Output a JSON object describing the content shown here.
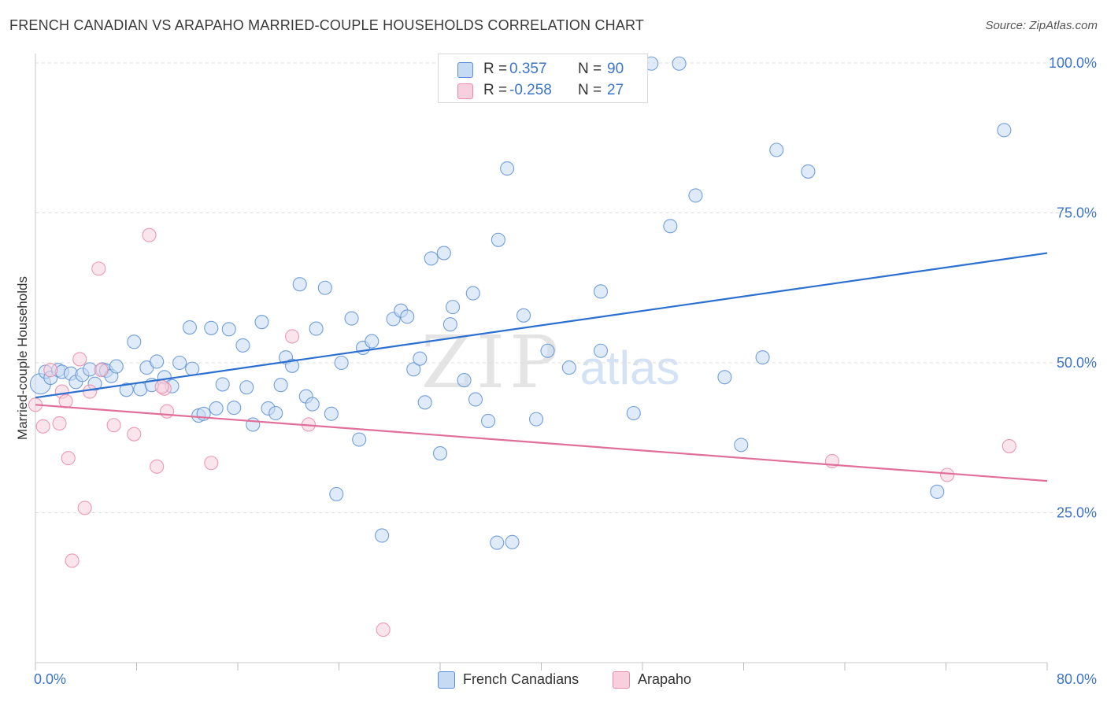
{
  "title": "FRENCH CANADIAN VS ARAPAHO MARRIED-COUPLE HOUSEHOLDS CORRELATION CHART",
  "source": "Source: ZipAtlas.com",
  "watermark": {
    "part1": "ZIP",
    "part2": "atlas"
  },
  "legend": {
    "series1": {
      "r_label": "R =",
      "r_value": "0.357",
      "n_label": "N =",
      "n_value": "90"
    },
    "series2": {
      "r_label": "R =",
      "r_value": "-0.258",
      "n_label": "N =",
      "n_value": "27"
    }
  },
  "colors": {
    "blue": "#5b8fd6",
    "blue_fill": "#c6daf4",
    "blue_line": "#2b6fd0",
    "pink": "#ea8aa8",
    "pink_fill": "#f8cfdc",
    "pink_line": "#e0709a",
    "tick_text": "#3b74c9",
    "grid": "#dddddd"
  },
  "chart_data": {
    "type": "scatter",
    "title": "FRENCH CANADIAN VS ARAPAHO MARRIED-COUPLE HOUSEHOLDS CORRELATION CHART",
    "xlabel": "",
    "ylabel": "Married-couple Households",
    "xlim": [
      0,
      80
    ],
    "ylim": [
      0,
      100
    ],
    "x_tick_labels": [
      "0.0%",
      "80.0%"
    ],
    "y_ticks": [
      25,
      50,
      75,
      100
    ],
    "y_tick_labels": [
      "25.0%",
      "50.0%",
      "75.0%",
      "100.0%"
    ],
    "grid": true,
    "legend_position": "bottom-center",
    "series": [
      {
        "name": "French Canadians",
        "color": "#5b8fd6",
        "r": 0.357,
        "n": 90,
        "trendline": [
          [
            0,
            44.2
          ],
          [
            80,
            68.3
          ]
        ],
        "points": [
          [
            0.4,
            46.5
          ],
          [
            0.8,
            48.5
          ],
          [
            1.2,
            47.5
          ],
          [
            1.8,
            48.8
          ],
          [
            2.1,
            48.5
          ],
          [
            2.8,
            48.2
          ],
          [
            3.2,
            46.8
          ],
          [
            3.7,
            48.0
          ],
          [
            4.3,
            48.9
          ],
          [
            4.7,
            46.5
          ],
          [
            5.3,
            48.9
          ],
          [
            5.6,
            48.7
          ],
          [
            6.0,
            47.8
          ],
          [
            6.4,
            49.4
          ],
          [
            7.2,
            45.5
          ],
          [
            7.8,
            53.5
          ],
          [
            8.3,
            45.6
          ],
          [
            8.8,
            49.2
          ],
          [
            9.6,
            50.2
          ],
          [
            9.2,
            46.3
          ],
          [
            10.2,
            47.6
          ],
          [
            10.8,
            46.1
          ],
          [
            11.4,
            50.0
          ],
          [
            12.2,
            55.9
          ],
          [
            12.4,
            49.0
          ],
          [
            12.9,
            41.2
          ],
          [
            13.3,
            41.5
          ],
          [
            13.9,
            55.8
          ],
          [
            14.3,
            42.4
          ],
          [
            14.8,
            46.4
          ],
          [
            15.3,
            55.6
          ],
          [
            15.7,
            42.5
          ],
          [
            16.4,
            52.9
          ],
          [
            16.7,
            45.9
          ],
          [
            17.2,
            39.7
          ],
          [
            17.9,
            56.8
          ],
          [
            18.4,
            42.4
          ],
          [
            19.0,
            41.6
          ],
          [
            19.4,
            46.3
          ],
          [
            19.8,
            50.9
          ],
          [
            20.3,
            49.5
          ],
          [
            20.9,
            63.1
          ],
          [
            21.4,
            44.4
          ],
          [
            21.9,
            43.1
          ],
          [
            22.2,
            55.7
          ],
          [
            22.9,
            62.5
          ],
          [
            23.4,
            41.5
          ],
          [
            23.8,
            28.1
          ],
          [
            24.2,
            50.0
          ],
          [
            25.0,
            57.4
          ],
          [
            25.6,
            37.2
          ],
          [
            25.9,
            52.5
          ],
          [
            26.6,
            53.6
          ],
          [
            27.4,
            21.2
          ],
          [
            28.3,
            57.3
          ],
          [
            28.9,
            58.7
          ],
          [
            29.4,
            57.7
          ],
          [
            29.9,
            48.9
          ],
          [
            30.8,
            43.4
          ],
          [
            31.3,
            67.4
          ],
          [
            32.0,
            34.9
          ],
          [
            32.3,
            68.3
          ],
          [
            32.8,
            56.4
          ],
          [
            33.0,
            59.3
          ],
          [
            33.9,
            47.1
          ],
          [
            34.6,
            61.6
          ],
          [
            34.8,
            43.9
          ],
          [
            35.8,
            40.3
          ],
          [
            36.5,
            20.0
          ],
          [
            36.6,
            70.5
          ],
          [
            37.3,
            82.4
          ],
          [
            37.7,
            20.1
          ],
          [
            38.6,
            57.9
          ],
          [
            39.6,
            40.6
          ],
          [
            40.5,
            52.0
          ],
          [
            42.2,
            49.2
          ],
          [
            44.7,
            52.0
          ],
          [
            44.7,
            61.9
          ],
          [
            47.3,
            41.6
          ],
          [
            48.7,
            99.9
          ],
          [
            50.2,
            72.8
          ],
          [
            50.9,
            99.9
          ],
          [
            52.2,
            77.9
          ],
          [
            54.5,
            47.6
          ],
          [
            55.8,
            36.3
          ],
          [
            57.5,
            50.9
          ],
          [
            58.6,
            85.5
          ],
          [
            61.1,
            81.9
          ],
          [
            71.3,
            28.5
          ],
          [
            76.6,
            88.8
          ],
          [
            30.4,
            50.7
          ]
        ]
      },
      {
        "name": "Arapaho",
        "color": "#ea8aa8",
        "r": -0.258,
        "n": 27,
        "trendline": [
          [
            0,
            43.0
          ],
          [
            80,
            30.3
          ]
        ],
        "points": [
          [
            0.0,
            43.0
          ],
          [
            0.6,
            39.4
          ],
          [
            1.2,
            48.8
          ],
          [
            1.9,
            39.9
          ],
          [
            2.1,
            45.2
          ],
          [
            2.4,
            43.6
          ],
          [
            2.6,
            34.1
          ],
          [
            2.9,
            17.0
          ],
          [
            3.5,
            50.6
          ],
          [
            3.9,
            25.8
          ],
          [
            4.3,
            45.2
          ],
          [
            5.0,
            65.7
          ],
          [
            5.2,
            48.8
          ],
          [
            6.2,
            39.6
          ],
          [
            7.8,
            38.1
          ],
          [
            9.0,
            71.3
          ],
          [
            9.6,
            32.7
          ],
          [
            10.2,
            45.7
          ],
          [
            10.4,
            41.9
          ],
          [
            13.9,
            33.3
          ],
          [
            20.3,
            54.4
          ],
          [
            21.6,
            39.7
          ],
          [
            27.5,
            5.5
          ],
          [
            63.0,
            33.6
          ],
          [
            72.1,
            31.3
          ],
          [
            77.0,
            36.1
          ],
          [
            10.0,
            46.0
          ]
        ]
      }
    ]
  },
  "bottom_legend": {
    "item1": "French Canadians",
    "item2": "Arapaho"
  }
}
